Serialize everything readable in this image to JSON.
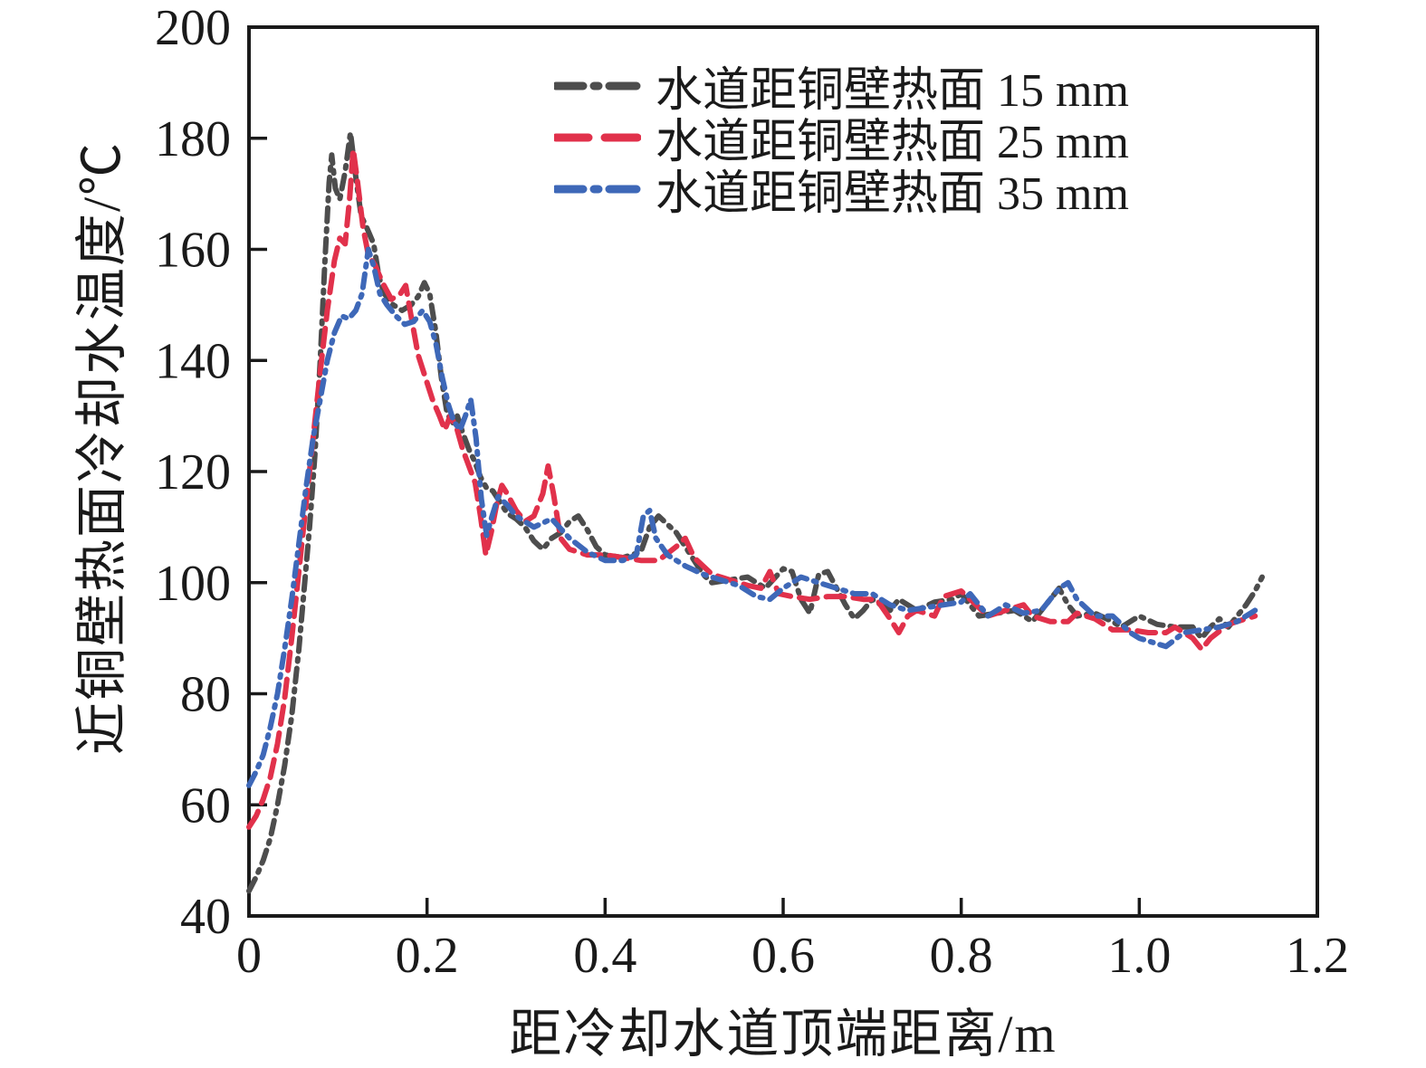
{
  "figure": {
    "background": "#ffffff",
    "frame_color": "#1a1a1a",
    "tick_color": "#1a1a1a",
    "text_color": "#1a1a1a"
  },
  "chart_data": {
    "type": "line",
    "title": "",
    "xlabel": "距冷却水道顶端距离/m",
    "ylabel": "近铜壁热面冷却水温度/℃",
    "xlim": [
      0,
      1.2
    ],
    "ylim": [
      40,
      200
    ],
    "x_ticks": [
      0,
      0.2,
      0.4,
      0.6,
      0.8,
      1.0,
      1.2
    ],
    "x_tick_labels": [
      "0",
      "0.2",
      "0.4",
      "0.6",
      "0.8",
      "1.0",
      "1.2"
    ],
    "y_ticks": [
      40,
      60,
      80,
      100,
      120,
      140,
      160,
      180,
      200
    ],
    "y_tick_labels": [
      "40",
      "60",
      "80",
      "100",
      "120",
      "140",
      "160",
      "180",
      "200"
    ],
    "grid": false,
    "legend_position": "inside upper center",
    "series": [
      {
        "name": "水道距铜壁热面 15 mm",
        "color": "#4d4d4d",
        "dash": "dash-dot",
        "points": [
          [
            0,
            44.5
          ],
          [
            0.008,
            47
          ],
          [
            0.016,
            50
          ],
          [
            0.024,
            54
          ],
          [
            0.032,
            60
          ],
          [
            0.04,
            67
          ],
          [
            0.048,
            76
          ],
          [
            0.056,
            88
          ],
          [
            0.062,
            99
          ],
          [
            0.068,
            110
          ],
          [
            0.074,
            123
          ],
          [
            0.08,
            140
          ],
          [
            0.085,
            157
          ],
          [
            0.09,
            172
          ],
          [
            0.093,
            177
          ],
          [
            0.097,
            171
          ],
          [
            0.102,
            169
          ],
          [
            0.108,
            174
          ],
          [
            0.114,
            181
          ],
          [
            0.12,
            173
          ],
          [
            0.126,
            166
          ],
          [
            0.132,
            164
          ],
          [
            0.14,
            161
          ],
          [
            0.146,
            155
          ],
          [
            0.152,
            152
          ],
          [
            0.162,
            150
          ],
          [
            0.172,
            149
          ],
          [
            0.182,
            150
          ],
          [
            0.19,
            151.5
          ],
          [
            0.197,
            154
          ],
          [
            0.203,
            152
          ],
          [
            0.21,
            145
          ],
          [
            0.216,
            137
          ],
          [
            0.222,
            131
          ],
          [
            0.228,
            128.5
          ],
          [
            0.234,
            130
          ],
          [
            0.24,
            127
          ],
          [
            0.247,
            124
          ],
          [
            0.253,
            122
          ],
          [
            0.26,
            119
          ],
          [
            0.267,
            117
          ],
          [
            0.274,
            116.5
          ],
          [
            0.28,
            115
          ],
          [
            0.29,
            112.5
          ],
          [
            0.3,
            111.5
          ],
          [
            0.31,
            110
          ],
          [
            0.32,
            107.5
          ],
          [
            0.33,
            106
          ],
          [
            0.34,
            108
          ],
          [
            0.35,
            109
          ],
          [
            0.36,
            111
          ],
          [
            0.37,
            112
          ],
          [
            0.38,
            109.5
          ],
          [
            0.39,
            106.5
          ],
          [
            0.4,
            105
          ],
          [
            0.42,
            104.5
          ],
          [
            0.44,
            105.5
          ],
          [
            0.45,
            110
          ],
          [
            0.46,
            112
          ],
          [
            0.47,
            110.5
          ],
          [
            0.48,
            109
          ],
          [
            0.5,
            104
          ],
          [
            0.51,
            101.5
          ],
          [
            0.52,
            100
          ],
          [
            0.54,
            100.5
          ],
          [
            0.56,
            101
          ],
          [
            0.58,
            99
          ],
          [
            0.6,
            102.5
          ],
          [
            0.61,
            102
          ],
          [
            0.62,
            97
          ],
          [
            0.63,
            94.5
          ],
          [
            0.64,
            101.5
          ],
          [
            0.65,
            102
          ],
          [
            0.66,
            99
          ],
          [
            0.67,
            96
          ],
          [
            0.68,
            93.5
          ],
          [
            0.69,
            95
          ],
          [
            0.7,
            97
          ],
          [
            0.72,
            95
          ],
          [
            0.73,
            97
          ],
          [
            0.75,
            95
          ],
          [
            0.77,
            96.5
          ],
          [
            0.79,
            97
          ],
          [
            0.8,
            98
          ],
          [
            0.81,
            96
          ],
          [
            0.82,
            94
          ],
          [
            0.84,
            94.5
          ],
          [
            0.86,
            95
          ],
          [
            0.88,
            93
          ],
          [
            0.9,
            97
          ],
          [
            0.91,
            99
          ],
          [
            0.92,
            96
          ],
          [
            0.93,
            94
          ],
          [
            0.95,
            94.5
          ],
          [
            0.97,
            93
          ],
          [
            0.98,
            92
          ],
          [
            1.0,
            94
          ],
          [
            1.02,
            92.5
          ],
          [
            1.04,
            92
          ],
          [
            1.06,
            92
          ],
          [
            1.07,
            90
          ],
          [
            1.08,
            92
          ],
          [
            1.09,
            93.5
          ],
          [
            1.1,
            92
          ],
          [
            1.11,
            94
          ],
          [
            1.12,
            96
          ],
          [
            1.13,
            98.5
          ],
          [
            1.138,
            101
          ]
        ]
      },
      {
        "name": "水道距铜壁热面 25 mm",
        "color": "#e1314b",
        "dash": "dashed",
        "points": [
          [
            0,
            56
          ],
          [
            0.008,
            58
          ],
          [
            0.016,
            61
          ],
          [
            0.024,
            65
          ],
          [
            0.032,
            71
          ],
          [
            0.04,
            79
          ],
          [
            0.048,
            90
          ],
          [
            0.056,
            102
          ],
          [
            0.064,
            114
          ],
          [
            0.072,
            126
          ],
          [
            0.08,
            138
          ],
          [
            0.088,
            149
          ],
          [
            0.096,
            158
          ],
          [
            0.102,
            162
          ],
          [
            0.108,
            161
          ],
          [
            0.113,
            169
          ],
          [
            0.117,
            178
          ],
          [
            0.122,
            172
          ],
          [
            0.128,
            164
          ],
          [
            0.134,
            159
          ],
          [
            0.142,
            157
          ],
          [
            0.15,
            154
          ],
          [
            0.16,
            151
          ],
          [
            0.17,
            152
          ],
          [
            0.176,
            153.5
          ],
          [
            0.182,
            148
          ],
          [
            0.19,
            141
          ],
          [
            0.198,
            137
          ],
          [
            0.206,
            133
          ],
          [
            0.214,
            130
          ],
          [
            0.22,
            127.5
          ],
          [
            0.226,
            130
          ],
          [
            0.233,
            128
          ],
          [
            0.24,
            124
          ],
          [
            0.247,
            121
          ],
          [
            0.254,
            118
          ],
          [
            0.26,
            112
          ],
          [
            0.266,
            105
          ],
          [
            0.272,
            109
          ],
          [
            0.278,
            114
          ],
          [
            0.284,
            117.5
          ],
          [
            0.29,
            116
          ],
          [
            0.3,
            113
          ],
          [
            0.31,
            111
          ],
          [
            0.32,
            112
          ],
          [
            0.33,
            116
          ],
          [
            0.336,
            121
          ],
          [
            0.342,
            116
          ],
          [
            0.35,
            108
          ],
          [
            0.36,
            106
          ],
          [
            0.38,
            105
          ],
          [
            0.4,
            105
          ],
          [
            0.42,
            104.5
          ],
          [
            0.44,
            104
          ],
          [
            0.46,
            104
          ],
          [
            0.48,
            106.5
          ],
          [
            0.49,
            108
          ],
          [
            0.5,
            104.5
          ],
          [
            0.52,
            101.5
          ],
          [
            0.54,
            100.5
          ],
          [
            0.56,
            99.5
          ],
          [
            0.575,
            99
          ],
          [
            0.585,
            102
          ],
          [
            0.595,
            98
          ],
          [
            0.61,
            97.5
          ],
          [
            0.63,
            97
          ],
          [
            0.65,
            97.5
          ],
          [
            0.67,
            97.5
          ],
          [
            0.69,
            97
          ],
          [
            0.705,
            97
          ],
          [
            0.72,
            93.5
          ],
          [
            0.73,
            91
          ],
          [
            0.74,
            94
          ],
          [
            0.75,
            95
          ],
          [
            0.77,
            94
          ],
          [
            0.78,
            97.5
          ],
          [
            0.8,
            98.5
          ],
          [
            0.81,
            97
          ],
          [
            0.83,
            94
          ],
          [
            0.85,
            95
          ],
          [
            0.87,
            96
          ],
          [
            0.88,
            94
          ],
          [
            0.9,
            93
          ],
          [
            0.92,
            93
          ],
          [
            0.93,
            94.5
          ],
          [
            0.95,
            93.5
          ],
          [
            0.97,
            91.5
          ],
          [
            0.99,
            91.5
          ],
          [
            1.01,
            91
          ],
          [
            1.03,
            91
          ],
          [
            1.04,
            92
          ],
          [
            1.06,
            90
          ],
          [
            1.07,
            88
          ],
          [
            1.08,
            90
          ],
          [
            1.1,
            92.5
          ],
          [
            1.12,
            93.5
          ],
          [
            1.13,
            94
          ]
        ]
      },
      {
        "name": "水道距铜壁热面 35 mm",
        "color": "#3e68b8",
        "dash": "dash-dot",
        "points": [
          [
            0,
            63.5
          ],
          [
            0.008,
            66
          ],
          [
            0.016,
            69
          ],
          [
            0.024,
            74
          ],
          [
            0.032,
            80
          ],
          [
            0.04,
            88
          ],
          [
            0.048,
            97
          ],
          [
            0.056,
            107
          ],
          [
            0.064,
            117
          ],
          [
            0.072,
            126
          ],
          [
            0.08,
            133
          ],
          [
            0.088,
            140
          ],
          [
            0.096,
            145
          ],
          [
            0.104,
            148
          ],
          [
            0.112,
            147.5
          ],
          [
            0.12,
            149
          ],
          [
            0.127,
            152
          ],
          [
            0.134,
            160
          ],
          [
            0.14,
            157
          ],
          [
            0.147,
            152
          ],
          [
            0.155,
            150
          ],
          [
            0.165,
            148
          ],
          [
            0.175,
            146.5
          ],
          [
            0.185,
            147
          ],
          [
            0.195,
            149
          ],
          [
            0.203,
            147
          ],
          [
            0.21,
            143
          ],
          [
            0.217,
            137
          ],
          [
            0.224,
            132
          ],
          [
            0.23,
            129
          ],
          [
            0.237,
            127.5
          ],
          [
            0.243,
            130
          ],
          [
            0.249,
            133
          ],
          [
            0.255,
            126
          ],
          [
            0.261,
            115
          ],
          [
            0.267,
            108.5
          ],
          [
            0.273,
            112
          ],
          [
            0.28,
            115.5
          ],
          [
            0.29,
            114
          ],
          [
            0.3,
            112
          ],
          [
            0.32,
            110
          ],
          [
            0.34,
            111.5
          ],
          [
            0.36,
            108
          ],
          [
            0.38,
            105.5
          ],
          [
            0.4,
            104
          ],
          [
            0.42,
            104
          ],
          [
            0.435,
            105
          ],
          [
            0.443,
            112
          ],
          [
            0.45,
            113
          ],
          [
            0.457,
            108
          ],
          [
            0.47,
            105
          ],
          [
            0.49,
            103
          ],
          [
            0.51,
            101.5
          ],
          [
            0.53,
            100.5
          ],
          [
            0.55,
            99.5
          ],
          [
            0.57,
            97.5
          ],
          [
            0.585,
            97
          ],
          [
            0.6,
            99
          ],
          [
            0.62,
            101
          ],
          [
            0.64,
            100
          ],
          [
            0.66,
            99
          ],
          [
            0.68,
            98
          ],
          [
            0.7,
            98
          ],
          [
            0.72,
            96
          ],
          [
            0.74,
            95
          ],
          [
            0.76,
            95.5
          ],
          [
            0.78,
            96
          ],
          [
            0.8,
            96.5
          ],
          [
            0.81,
            98
          ],
          [
            0.83,
            94
          ],
          [
            0.85,
            96
          ],
          [
            0.87,
            94.5
          ],
          [
            0.89,
            95
          ],
          [
            0.91,
            99
          ],
          [
            0.92,
            100
          ],
          [
            0.93,
            97
          ],
          [
            0.95,
            94
          ],
          [
            0.97,
            94
          ],
          [
            0.99,
            91
          ],
          [
            1.0,
            90
          ],
          [
            1.02,
            89
          ],
          [
            1.03,
            88.5
          ],
          [
            1.05,
            91
          ],
          [
            1.07,
            91.5
          ],
          [
            1.09,
            92
          ],
          [
            1.11,
            93
          ],
          [
            1.13,
            95
          ]
        ]
      }
    ]
  }
}
